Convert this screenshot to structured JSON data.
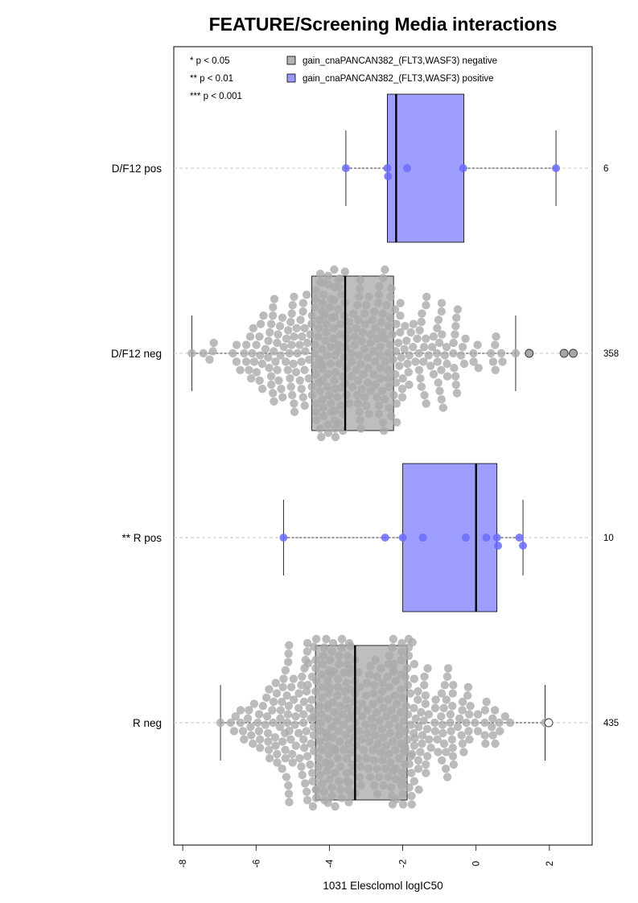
{
  "chart_data": {
    "type": "box",
    "title": "FEATURE/Screening Media interactions",
    "xlabel": "1031 Elesclomol logIC50",
    "xlim": [
      -8.2,
      3.1
    ],
    "xticks": [
      -8,
      -6,
      -4,
      -2,
      0,
      2
    ],
    "xtick_labels": [
      "-8",
      "-6",
      "-4",
      "-2",
      "0",
      "2"
    ],
    "significance_legend": [
      "* p < 0.05",
      "** p < 0.01",
      "*** p < 0.001"
    ],
    "legend": [
      {
        "label": "gain_cnaPANCAN382_(FLT3,WASF3) negative",
        "color": "#b3b3b3"
      },
      {
        "label": "gain_cnaPANCAN382_(FLT3,WASF3) positive",
        "color": "#9999ff"
      }
    ],
    "colors": {
      "negative_box": "#bebebe",
      "negative_point": "#aaaaaa",
      "positive_box": "#9e9eff",
      "positive_point": "#6b6bff"
    },
    "groups": [
      {
        "label": "D/F12 pos",
        "n": "6",
        "status": "positive",
        "whisker_low": -3.55,
        "q1": -2.42,
        "median": -2.18,
        "q3": -0.33,
        "whisker_high": 2.18,
        "points": [
          -3.55,
          -2.42,
          -2.4,
          -1.88,
          -0.35,
          2.18
        ],
        "outliers": []
      },
      {
        "label": "D/F12 neg",
        "n": "358",
        "status": "negative",
        "whisker_low": -7.75,
        "q1": -4.48,
        "median": -3.57,
        "q3": -2.25,
        "whisker_high": 1.08,
        "points": [],
        "outliers": [
          1.45,
          2.4,
          2.65
        ]
      },
      {
        "label": "** R pos",
        "n": "10",
        "status": "positive",
        "whisker_low": -5.25,
        "q1": -2.0,
        "median": 0.0,
        "q3": 0.57,
        "whisker_high": 1.28,
        "points": [
          -5.25,
          -2.48,
          -2.0,
          -1.45,
          -0.28,
          0.28,
          0.57,
          0.6,
          1.18,
          1.28
        ],
        "outliers": []
      },
      {
        "label": "R neg",
        "n": "435",
        "status": "negative",
        "whisker_low": -6.97,
        "q1": -4.38,
        "median": -3.3,
        "q3": -1.88,
        "whisker_high": 1.88,
        "points": [],
        "outliers": [
          1.98
        ]
      }
    ]
  }
}
